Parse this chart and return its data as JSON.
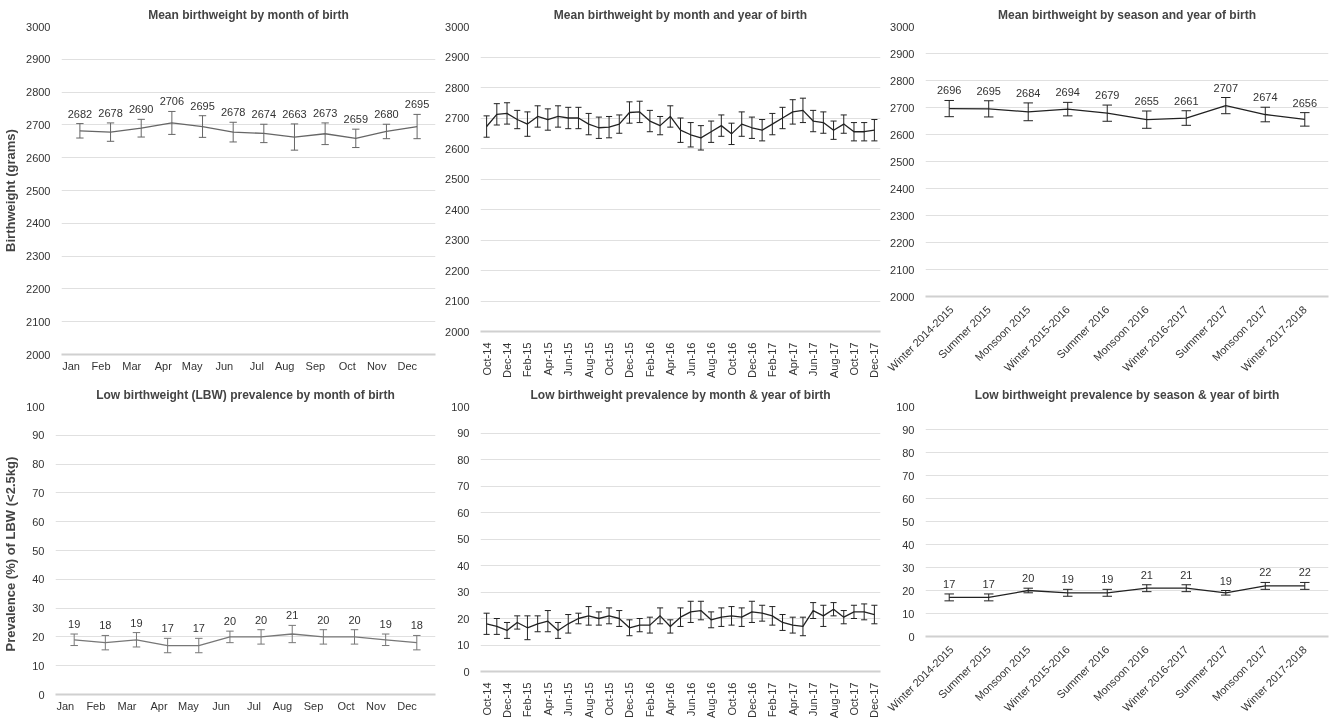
{
  "chart_data": [
    {
      "type": "line",
      "title": "Mean birthweight by month of birth",
      "ylabel": "Birthweight (grams)",
      "categories": [
        "Jan",
        "Feb",
        "Mar",
        "Apr",
        "May",
        "Jun",
        "Jul",
        "Aug",
        "Sep",
        "Oct",
        "Nov",
        "Dec"
      ],
      "series": [
        {
          "color": "#666666",
          "values": [
            2682,
            2678,
            2690,
            2706,
            2695,
            2678,
            2674,
            2663,
            2673,
            2659,
            2680,
            2695
          ],
          "errors": [
            22,
            28,
            27,
            35,
            33,
            30,
            28,
            40,
            33,
            28,
            22,
            37
          ]
        }
      ],
      "ylim": [
        2000,
        3000
      ],
      "yticks": [
        2000,
        2100,
        2200,
        2300,
        2400,
        2500,
        2600,
        2700,
        2800,
        2900,
        3000
      ],
      "grid": "y",
      "data_labels": true
    },
    {
      "type": "line",
      "title": "Mean birthweight by month and year of birth",
      "categories": [
        "Oct-14",
        null,
        "Dec-14",
        null,
        "Feb-15",
        null,
        "Apr-15",
        null,
        "Jun-15",
        null,
        "Aug-15",
        null,
        "Oct-15",
        null,
        "Dec-15",
        null,
        "Feb-16",
        null,
        "Apr-16",
        null,
        "Jun-16",
        null,
        "Aug-16",
        null,
        "Oct-16",
        null,
        "Dec-16",
        null,
        "Feb-17",
        null,
        "Apr-17",
        null,
        "Jun-17",
        null,
        "Aug-17",
        null,
        "Oct-17",
        null,
        "Dec-17"
      ],
      "series": [
        {
          "color": "#222222",
          "values": [
            2672,
            2712,
            2715,
            2695,
            2680,
            2705,
            2695,
            2705,
            2700,
            2700,
            2680,
            2668,
            2670,
            2680,
            2718,
            2720,
            2690,
            2675,
            2705,
            2660,
            2645,
            2635,
            2655,
            2675,
            2648,
            2680,
            2668,
            2660,
            2680,
            2700,
            2720,
            2725,
            2690,
            2685,
            2660,
            2680,
            2655,
            2655,
            2660
          ],
          "errors": [
            35,
            35,
            35,
            30,
            40,
            35,
            35,
            35,
            35,
            35,
            35,
            35,
            35,
            30,
            35,
            35,
            35,
            30,
            35,
            40,
            40,
            40,
            35,
            35,
            35,
            40,
            35,
            35,
            35,
            35,
            40,
            40,
            35,
            35,
            30,
            30,
            30,
            30,
            35
          ]
        }
      ],
      "ylim": [
        2000,
        3000
      ],
      "yticks": [
        2000,
        2100,
        2200,
        2300,
        2400,
        2500,
        2600,
        2700,
        2800,
        2900,
        3000
      ],
      "grid": "y"
    },
    {
      "type": "line",
      "title": "Mean birthweight by season and year of birth",
      "categories": [
        "Winter 2014-2015",
        "Summer 2015",
        "Monsoon 2015",
        "Winter 2015-2016",
        "Summer 2016",
        "Monsoon 2016",
        "Winter 2016-2017",
        "Summer 2017",
        "Monsoon 2017",
        "Winter 2017-2018"
      ],
      "series": [
        {
          "color": "#222222",
          "values": [
            2696,
            2695,
            2684,
            2694,
            2679,
            2655,
            2661,
            2707,
            2674,
            2656
          ],
          "errors": [
            30,
            30,
            33,
            25,
            30,
            32,
            27,
            30,
            27,
            25
          ]
        }
      ],
      "ylim": [
        2000,
        3000
      ],
      "yticks": [
        2000,
        2100,
        2200,
        2300,
        2400,
        2500,
        2600,
        2700,
        2800,
        2900,
        3000
      ],
      "grid": "y",
      "data_labels": true
    },
    {
      "type": "line",
      "title": "Low birthweight (LBW) prevalence by month of birth",
      "ylabel": "Prevalence (%)  of  LBW (<2.5kg)",
      "categories": [
        "Jan",
        "Feb",
        "Mar",
        "Apr",
        "May",
        "Jun",
        "Jul",
        "Aug",
        "Sep",
        "Oct",
        "Nov",
        "Dec"
      ],
      "series": [
        {
          "color": "#777777",
          "values": [
            19,
            18,
            19,
            17,
            17,
            20,
            20,
            21,
            20,
            20,
            19,
            18
          ],
          "errors": [
            2,
            2.5,
            2.5,
            2.5,
            2.5,
            2,
            2.5,
            3,
            2.5,
            2.5,
            2,
            2.5
          ]
        }
      ],
      "ylim": [
        0,
        100
      ],
      "yticks": [
        0,
        10,
        20,
        30,
        40,
        50,
        60,
        70,
        80,
        90,
        100
      ],
      "grid": "y",
      "data_labels": true
    },
    {
      "type": "line",
      "title": "Low birthweight prevalence by month & year of birth",
      "categories": [
        "Oct-14",
        null,
        "Dec-14",
        null,
        "Feb-15",
        null,
        "Apr-15",
        null,
        "Jun-15",
        null,
        "Aug-15",
        null,
        "Oct-15",
        null,
        "Dec-15",
        null,
        "Feb-16",
        null,
        "Apr-16",
        null,
        "Jun-16",
        null,
        "Aug-16",
        null,
        "Oct-16",
        null,
        "Dec-16",
        null,
        "Feb-17",
        null,
        "Apr-17",
        null,
        "Jun-17",
        null,
        "Aug-17",
        null,
        "Oct-17",
        null,
        "Dec-17"
      ],
      "series": [
        {
          "color": "#222222",
          "values": [
            18,
            17,
            15.5,
            18.5,
            16.5,
            18,
            19,
            15.5,
            18,
            20,
            21,
            20,
            21,
            20,
            16.5,
            17.5,
            17.5,
            21,
            17,
            20.5,
            22.5,
            23,
            19.5,
            20.5,
            21,
            20.5,
            22.5,
            22,
            21,
            18.5,
            17.5,
            17,
            23,
            21,
            23.5,
            20.5,
            22.5,
            22.5,
            21.5
          ],
          "errors": [
            4,
            3,
            3,
            2.5,
            4.5,
            3,
            4,
            3,
            3.5,
            2,
            3.5,
            2.5,
            3,
            3,
            3,
            2.5,
            3,
            3,
            2.5,
            3.5,
            4,
            3.5,
            3,
            3.5,
            3.5,
            3.5,
            4,
            3,
            3.5,
            3,
            3,
            3.5,
            3,
            4,
            2.5,
            2.5,
            2.5,
            3,
            3.5
          ]
        }
      ],
      "ylim": [
        0,
        100
      ],
      "yticks": [
        0,
        10,
        20,
        30,
        40,
        50,
        60,
        70,
        80,
        90,
        100
      ],
      "grid": "y"
    },
    {
      "type": "line",
      "title": "Low birthweight prevalence by season & year of birth",
      "categories": [
        "Winter 2014-2015",
        "Summer 2015",
        "Monsoon 2015",
        "Winter 2015-2016",
        "Summer 2016",
        "Monsoon 2016",
        "Winter 2016-2017",
        "Summer 2017",
        "Monsoon 2017",
        "Winter 2017-2018"
      ],
      "series": [
        {
          "color": "#222222",
          "values": [
            17,
            17,
            20,
            19,
            19,
            21,
            21,
            19,
            22,
            22
          ],
          "errors": [
            1.5,
            1.5,
            1,
            1.5,
            1.5,
            1.5,
            1.5,
            1,
            1.5,
            1.5
          ]
        }
      ],
      "ylim": [
        0,
        100
      ],
      "yticks": [
        0,
        10,
        20,
        30,
        40,
        50,
        60,
        70,
        80,
        90,
        100
      ],
      "grid": "y",
      "data_labels": true
    }
  ]
}
